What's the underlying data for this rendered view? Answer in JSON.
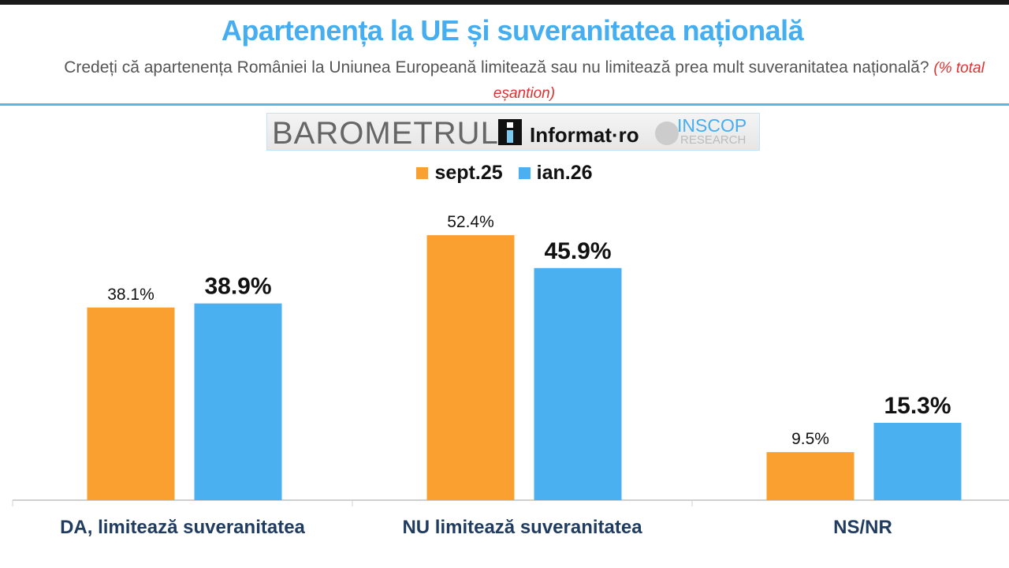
{
  "header": {
    "title": "Apartenența la UE și suveranitatea națională",
    "subtitle": "Credeți că apartenența României la Uniunea Europeană limitează sau nu limitează prea mult suveranitatea națională?",
    "subtitle_note": "(% total eșantion)"
  },
  "logo": {
    "barometrul": "BAROMETRUL",
    "informat": "Informat·ro",
    "inscop": "INSCOP",
    "research": "RESEARCH"
  },
  "colors": {
    "sept25": "#f9a030",
    "ian26": "#4ab0f0",
    "title": "#45aef0",
    "category_label": "#1f3b5f"
  },
  "chart_data": {
    "type": "bar",
    "categories": [
      "DA, limitează suveranitatea",
      "NU limitează suveranitatea",
      "NS/NR"
    ],
    "series": [
      {
        "name": "sept.25",
        "values": [
          38.1,
          52.4,
          9.5
        ],
        "labels": [
          "38.1%",
          "52.4%",
          "9.5%"
        ]
      },
      {
        "name": "ian.26",
        "values": [
          38.9,
          45.9,
          15.3
        ],
        "labels": [
          "38.9%",
          "45.9%",
          "15.3%"
        ]
      }
    ],
    "legend": "top-center",
    "grid": false,
    "ylim": [
      0,
      55
    ]
  }
}
